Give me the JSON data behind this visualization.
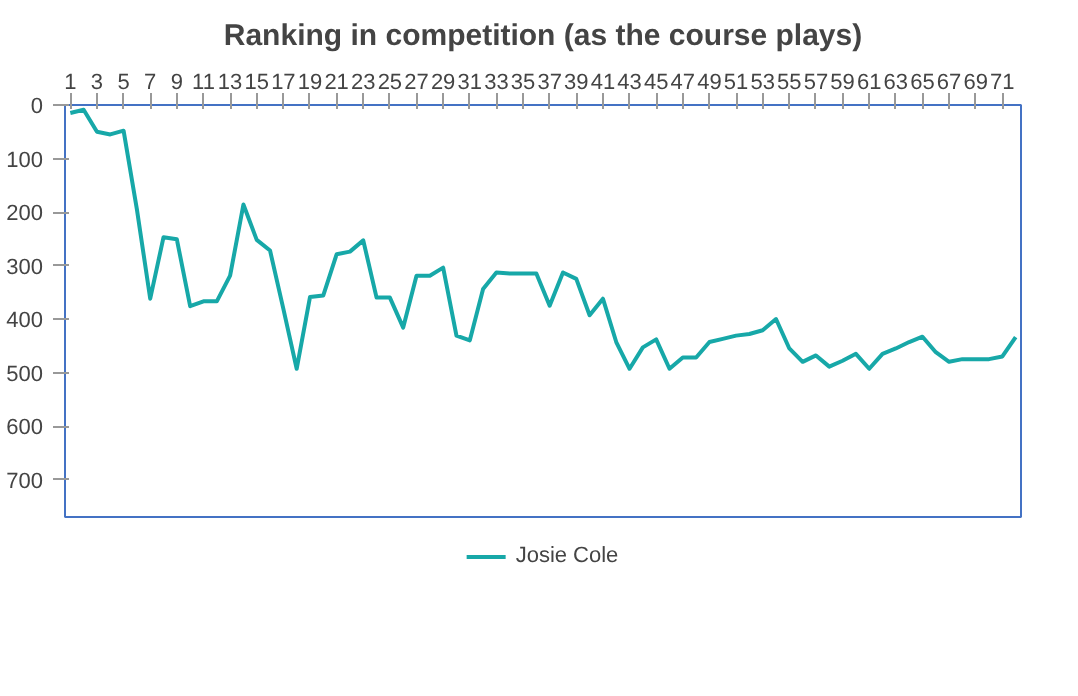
{
  "chart_data": {
    "type": "line",
    "title": "Ranking in competition (as the course plays)",
    "x": [
      1,
      2,
      3,
      4,
      5,
      6,
      7,
      8,
      9,
      10,
      11,
      12,
      13,
      14,
      15,
      16,
      17,
      18,
      19,
      20,
      21,
      22,
      23,
      24,
      25,
      26,
      27,
      28,
      29,
      30,
      31,
      32,
      33,
      34,
      35,
      36,
      37,
      38,
      39,
      40,
      41,
      42,
      43,
      44,
      45,
      46,
      47,
      48,
      49,
      50,
      51,
      52,
      53,
      54,
      55,
      56,
      57,
      58,
      59,
      60,
      61,
      62,
      63,
      64,
      65,
      66,
      67,
      68,
      69,
      70,
      71,
      72
    ],
    "series": [
      {
        "name": "Josie Cole",
        "color": "#17a8a8",
        "values": [
          15,
          9,
          50,
          55,
          48,
          195,
          362,
          247,
          251,
          376,
          367,
          367,
          319,
          186,
          252,
          272,
          381,
          493,
          359,
          356,
          279,
          274,
          253,
          360,
          360,
          416,
          319,
          319,
          304,
          431,
          440,
          344,
          313,
          315,
          315,
          315,
          375,
          313,
          325,
          393,
          362,
          443,
          493,
          453,
          438,
          493,
          472,
          472,
          443,
          437,
          431,
          428,
          421,
          400,
          455,
          480,
          468,
          489,
          478,
          465,
          493,
          465,
          455,
          443,
          433,
          462,
          480,
          475,
          475,
          475,
          470,
          434
        ]
      }
    ],
    "xlim": [
      0.6,
      72.4
    ],
    "xticks": [
      1,
      3,
      5,
      7,
      9,
      11,
      13,
      15,
      17,
      19,
      21,
      23,
      25,
      27,
      29,
      31,
      33,
      35,
      37,
      39,
      41,
      43,
      45,
      47,
      49,
      51,
      53,
      55,
      57,
      59,
      61,
      63,
      65,
      67,
      69,
      71
    ],
    "ylim": [
      770,
      0
    ],
    "yticks": [
      0,
      100,
      200,
      300,
      400,
      500,
      600,
      700
    ],
    "grid": false,
    "legend": "bottom",
    "marker": "none",
    "line_style": "solid"
  }
}
